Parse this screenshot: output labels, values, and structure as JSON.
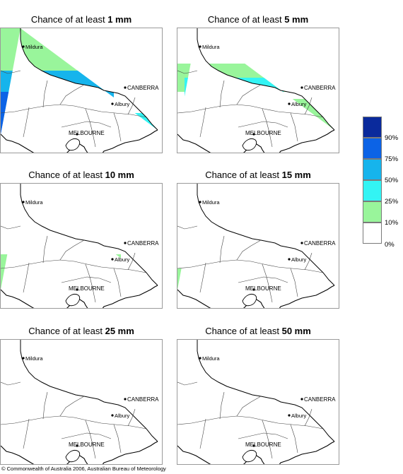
{
  "panels": [
    {
      "prefix": "Chance of at least ",
      "amount": "1 mm",
      "coverage": "heavy"
    },
    {
      "prefix": "Chance of at least ",
      "amount": "5 mm",
      "coverage": "medium"
    },
    {
      "prefix": "Chance of at least ",
      "amount": "10 mm",
      "coverage": "light"
    },
    {
      "prefix": "Chance of at least ",
      "amount": "15 mm",
      "coverage": "lighter"
    },
    {
      "prefix": "Chance of at least ",
      "amount": "25 mm",
      "coverage": "trace"
    },
    {
      "prefix": "Chance of at least ",
      "amount": "50 mm",
      "coverage": "none"
    }
  ],
  "places": {
    "mildura": "Mildura",
    "canberra": "CANBERRA",
    "albury": "Albury",
    "melbourne": "MELBOURNE"
  },
  "legend": {
    "labels": [
      "90%",
      "75%",
      "50%",
      "25%",
      "10%",
      "0%"
    ],
    "bins": [
      {
        "range": "90-100%",
        "color": "#0a2a9c"
      },
      {
        "range": "75-90%",
        "color": "#0c63e6"
      },
      {
        "range": "50-75%",
        "color": "#16b4ec"
      },
      {
        "range": "25-50%",
        "color": "#33f4f4"
      },
      {
        "range": "10-25%",
        "color": "#99f59b"
      },
      {
        "range": "0-10%",
        "color": "#ffffff"
      }
    ]
  },
  "copyright": "© Commonwealth of Australia 2006, Australian Bureau of Meteorology"
}
